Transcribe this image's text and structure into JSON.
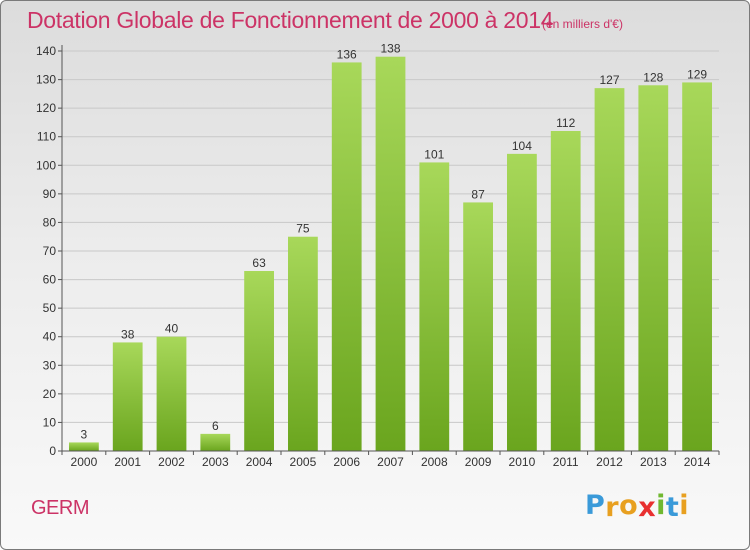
{
  "chart_data": {
    "type": "bar",
    "title": "Dotation Globale de Fonctionnement de 2000 à 2014",
    "unit_label": "(en milliers d'€)",
    "categories": [
      "2000",
      "2001",
      "2002",
      "2003",
      "2004",
      "2005",
      "2006",
      "2007",
      "2008",
      "2009",
      "2010",
      "2011",
      "2012",
      "2013",
      "2014"
    ],
    "values": [
      3,
      38,
      40,
      6,
      63,
      75,
      136,
      138,
      101,
      87,
      104,
      112,
      127,
      128,
      129
    ],
    "data_labels": [
      "3",
      "38",
      "40",
      "6",
      "63",
      "75",
      "136",
      "138",
      "101",
      "87",
      "104",
      "112",
      "127",
      "128",
      "129"
    ],
    "ylim": [
      0,
      140
    ],
    "yticks": [
      "0",
      "10",
      "20",
      "30",
      "40",
      "50",
      "60",
      "70",
      "80",
      "90",
      "100",
      "110",
      "120",
      "130",
      "140"
    ],
    "grid": true,
    "bar_color_top": "#a8d85a",
    "bar_color_bottom": "#6aa51e"
  },
  "commune": "GERM",
  "logo": {
    "letters": [
      "P",
      "r",
      "o",
      "x",
      "i",
      "t",
      "i"
    ],
    "colors": [
      "#3a9ad9",
      "#e8a020",
      "#e8a020",
      "#e83030",
      "#70b830",
      "#3a9ad9",
      "#e8a020"
    ]
  },
  "colors": {
    "accent": "#cc3366"
  }
}
